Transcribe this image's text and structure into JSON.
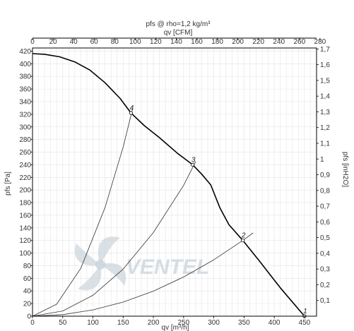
{
  "chart_data": {
    "type": "line",
    "title": "pfs @ rho=1,2 kg/m³",
    "xlabel": "qv [m³/h]",
    "x2label": "qv [CFM]",
    "ylabel": "pfs [Pa]",
    "y2label": "pfs [inH2O]",
    "xlim": [
      0,
      470
    ],
    "ylim": [
      0,
      425
    ],
    "x_ticks": [
      0,
      50,
      100,
      150,
      200,
      250,
      300,
      350,
      400,
      450
    ],
    "y_ticks": [
      0,
      20,
      40,
      60,
      80,
      100,
      120,
      140,
      160,
      180,
      200,
      220,
      240,
      260,
      280,
      300,
      320,
      340,
      360,
      380,
      400,
      420
    ],
    "x2_ticks": [
      "0",
      "20",
      "40",
      "60",
      "80",
      "100",
      "120",
      "140",
      "160",
      "180",
      "200",
      "220",
      "240",
      "260",
      "280"
    ],
    "y2_ticks": [
      "0,1",
      "0,2",
      "0,3",
      "0,4",
      "0,5",
      "0,6",
      "0,7",
      "0,8",
      "0,9",
      "1",
      "1,1",
      "1,2",
      "1,3",
      "1,4",
      "1,5",
      "1,6",
      "1,7"
    ],
    "grid": true,
    "series": [
      {
        "role": "fan-curve",
        "color": "#000000",
        "x": [
          0,
          20,
          45,
          70,
          95,
          120,
          145,
          163,
          185,
          210,
          240,
          265,
          280,
          295,
          310,
          325,
          348,
          375,
          410,
          450
        ],
        "y": [
          416,
          415,
          411,
          403,
          390,
          370,
          345,
          322,
          302,
          283,
          258,
          240,
          225,
          208,
          172,
          145,
          120,
          88,
          45,
          0
        ]
      },
      {
        "role": "system-curve",
        "color": "#333333",
        "x": [
          0,
          50,
          100,
          150,
          200,
          250,
          300,
          348,
          365
        ],
        "y": [
          0,
          2.5,
          9.9,
          22.4,
          39.7,
          62.1,
          89.4,
          120,
          132
        ]
      },
      {
        "role": "system-curve",
        "color": "#333333",
        "x": [
          0,
          50,
          100,
          150,
          200,
          250,
          270
        ],
        "y": [
          0,
          8.3,
          33.1,
          74.6,
          132.6,
          207.2,
          245
        ]
      },
      {
        "role": "system-curve",
        "color": "#333333",
        "x": [
          0,
          40,
          80,
          120,
          150,
          166
        ],
        "y": [
          0,
          19,
          76,
          172,
          268,
          330
        ]
      }
    ],
    "points": [
      {
        "label": "1",
        "x": 450,
        "y": 0
      },
      {
        "label": "2",
        "x": 348,
        "y": 120
      },
      {
        "label": "3",
        "x": 265,
        "y": 240
      },
      {
        "label": "4",
        "x": 163,
        "y": 322
      }
    ]
  },
  "watermark": {
    "text": "VENTEL",
    "color": "#c9d3dc"
  }
}
